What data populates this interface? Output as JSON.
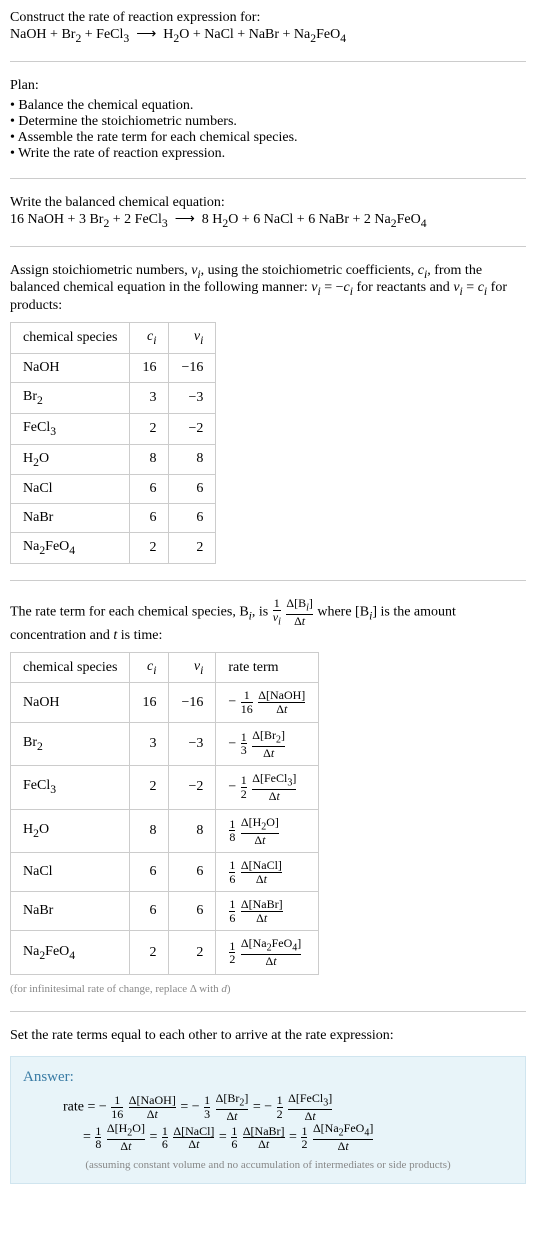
{
  "section_construct": {
    "heading": "Construct the rate of reaction expression for:",
    "equation": "NaOH + Br<sub>2</sub> + FeCl<sub>3</sub> &nbsp;⟶&nbsp; H<sub>2</sub>O + NaCl + NaBr + Na<sub>2</sub>FeO<sub>4</sub>"
  },
  "section_plan": {
    "heading": "Plan:",
    "items": [
      "Balance the chemical equation.",
      "Determine the stoichiometric numbers.",
      "Assemble the rate term for each chemical species.",
      "Write the rate of reaction expression."
    ]
  },
  "section_balanced": {
    "heading": "Write the balanced chemical equation:",
    "equation": "16 NaOH + 3 Br<sub>2</sub> + 2 FeCl<sub>3</sub> &nbsp;⟶&nbsp; 8 H<sub>2</sub>O + 6 NaCl + 6 NaBr + 2 Na<sub>2</sub>FeO<sub>4</sub>"
  },
  "section_stoich": {
    "text1": "Assign stoichiometric numbers, <span class='italic'>ν<sub>i</sub></span>, using the stoichiometric coefficients, <span class='italic'>c<sub>i</sub></span>, from the balanced chemical equation in the following manner: <span class='italic'>ν<sub>i</sub></span> = −<span class='italic'>c<sub>i</sub></span> for reactants and <span class='italic'>ν<sub>i</sub></span> = <span class='italic'>c<sub>i</sub></span> for products:",
    "table": {
      "headers": [
        "chemical species",
        "<span class='italic'>c<sub>i</sub></span>",
        "<span class='italic'>ν<sub>i</sub></span>"
      ],
      "rows": [
        [
          "NaOH",
          "16",
          "−16"
        ],
        [
          "Br<sub>2</sub>",
          "3",
          "−3"
        ],
        [
          "FeCl<sub>3</sub>",
          "2",
          "−2"
        ],
        [
          "H<sub>2</sub>O",
          "8",
          "8"
        ],
        [
          "NaCl",
          "6",
          "6"
        ],
        [
          "NaBr",
          "6",
          "6"
        ],
        [
          "Na<sub>2</sub>FeO<sub>4</sub>",
          "2",
          "2"
        ]
      ]
    }
  },
  "section_rateterm": {
    "text": "The rate term for each chemical species, B<sub><span class='italic'>i</span></sub>, is <span class='frac'><span class='num'>1</span><span class='den'><span class='italic'>ν<sub>i</sub></span></span></span> <span class='frac'><span class='num'>Δ[B<sub><span class=\"italic\">i</span></sub>]</span><span class='den'>Δ<span class='italic'>t</span></span></span> where [B<sub><span class='italic'>i</span></sub>] is the amount concentration and <span class='italic'>t</span> is time:",
    "table": {
      "headers": [
        "chemical species",
        "<span class='italic'>c<sub>i</sub></span>",
        "<span class='italic'>ν<sub>i</sub></span>",
        "rate term"
      ],
      "rows": [
        [
          "NaOH",
          "16",
          "−16",
          "− <span class='frac'><span class='num'>1</span><span class='den'>16</span></span> <span class='frac'><span class='num'>Δ[NaOH]</span><span class='den'>Δ<span class='italic'>t</span></span></span>"
        ],
        [
          "Br<sub>2</sub>",
          "3",
          "−3",
          "− <span class='frac'><span class='num'>1</span><span class='den'>3</span></span> <span class='frac'><span class='num'>Δ[Br<sub>2</sub>]</span><span class='den'>Δ<span class='italic'>t</span></span></span>"
        ],
        [
          "FeCl<sub>3</sub>",
          "2",
          "−2",
          "− <span class='frac'><span class='num'>1</span><span class='den'>2</span></span> <span class='frac'><span class='num'>Δ[FeCl<sub>3</sub>]</span><span class='den'>Δ<span class='italic'>t</span></span></span>"
        ],
        [
          "H<sub>2</sub>O",
          "8",
          "8",
          "<span class='frac'><span class='num'>1</span><span class='den'>8</span></span> <span class='frac'><span class='num'>Δ[H<sub>2</sub>O]</span><span class='den'>Δ<span class='italic'>t</span></span></span>"
        ],
        [
          "NaCl",
          "6",
          "6",
          "<span class='frac'><span class='num'>1</span><span class='den'>6</span></span> <span class='frac'><span class='num'>Δ[NaCl]</span><span class='den'>Δ<span class='italic'>t</span></span></span>"
        ],
        [
          "NaBr",
          "6",
          "6",
          "<span class='frac'><span class='num'>1</span><span class='den'>6</span></span> <span class='frac'><span class='num'>Δ[NaBr]</span><span class='den'>Δ<span class='italic'>t</span></span></span>"
        ],
        [
          "Na<sub>2</sub>FeO<sub>4</sub>",
          "2",
          "2",
          "<span class='frac'><span class='num'>1</span><span class='den'>2</span></span> <span class='frac'><span class='num'>Δ[Na<sub>2</sub>FeO<sub>4</sub>]</span><span class='den'>Δ<span class='italic'>t</span></span></span>"
        ]
      ]
    },
    "footnote": "(for infinitesimal rate of change, replace Δ with <span class='italic'>d</span>)"
  },
  "section_setrate": {
    "text": "Set the rate terms equal to each other to arrive at the rate expression:"
  },
  "answer": {
    "title": "Answer:",
    "line1": "rate = − <span class='frac'><span class='num'>1</span><span class='den'>16</span></span> <span class='frac'><span class='num'>Δ[NaOH]</span><span class='den'>Δ<span class='italic'>t</span></span></span> = − <span class='frac'><span class='num'>1</span><span class='den'>3</span></span> <span class='frac'><span class='num'>Δ[Br<sub>2</sub>]</span><span class='den'>Δ<span class='italic'>t</span></span></span> = − <span class='frac'><span class='num'>1</span><span class='den'>2</span></span> <span class='frac'><span class='num'>Δ[FeCl<sub>3</sub>]</span><span class='den'>Δ<span class='italic'>t</span></span></span>",
    "line2": "= <span class='frac'><span class='num'>1</span><span class='den'>8</span></span> <span class='frac'><span class='num'>Δ[H<sub>2</sub>O]</span><span class='den'>Δ<span class='italic'>t</span></span></span> = <span class='frac'><span class='num'>1</span><span class='den'>6</span></span> <span class='frac'><span class='num'>Δ[NaCl]</span><span class='den'>Δ<span class='italic'>t</span></span></span> = <span class='frac'><span class='num'>1</span><span class='den'>6</span></span> <span class='frac'><span class='num'>Δ[NaBr]</span><span class='den'>Δ<span class='italic'>t</span></span></span> = <span class='frac'><span class='num'>1</span><span class='den'>2</span></span> <span class='frac'><span class='num'>Δ[Na<sub>2</sub>FeO<sub>4</sub>]</span><span class='den'>Δ<span class='italic'>t</span></span></span>",
    "note": "(assuming constant volume and no accumulation of intermediates or side products)"
  }
}
